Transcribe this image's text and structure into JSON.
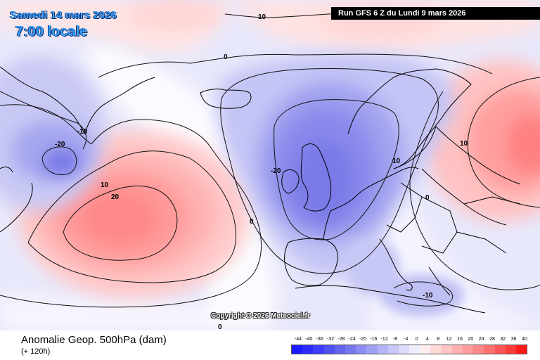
{
  "header": {
    "date": "Samedi 14 mars 2026",
    "time": "7:00 locale",
    "run": "Run GFS 6 Z du Lundi 9 mars 2026"
  },
  "copyright": "Copyright © 2026 Meteociel.fr",
  "footer": {
    "title": "Anomalie Geop. 500hPa (dam)",
    "subtitle": "(+ 120h)"
  },
  "contour_labels": [
    "10",
    "0",
    "-10",
    "-20",
    "10",
    "20",
    "0",
    "-20",
    "10",
    "0",
    "10",
    "-10",
    "0"
  ],
  "scale": {
    "labels": [
      "-44",
      "-40",
      "-36",
      "-32",
      "-28",
      "-24",
      "-20",
      "-16",
      "-12",
      "-8",
      "-4",
      "0",
      "4",
      "8",
      "12",
      "16",
      "20",
      "24",
      "28",
      "32",
      "36",
      "40"
    ],
    "colors": [
      "#1a1aff",
      "#2b2bff",
      "#3d3dff",
      "#5050f0",
      "#6464ee",
      "#7878ee",
      "#8c8cf2",
      "#a0a0f5",
      "#b4b4f8",
      "#c8c8fa",
      "#dcdcfc",
      "#eeeeff",
      "#ffecec",
      "#ffd8d8",
      "#ffc4c4",
      "#ffb0b0",
      "#ff9c9c",
      "#ff8888",
      "#ff7070",
      "#ff5555",
      "#ff3a3a",
      "#ff1a1a"
    ]
  }
}
